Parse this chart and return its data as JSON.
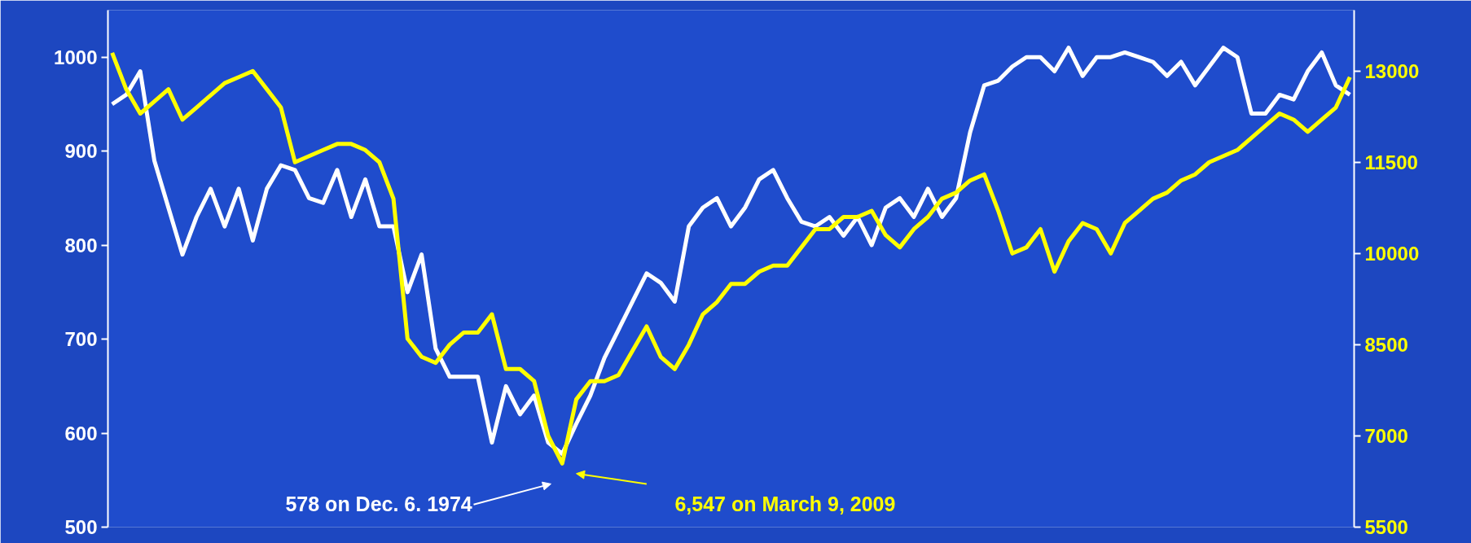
{
  "chart_data": {
    "type": "line",
    "categories": [
      null,
      null,
      null,
      null,
      null,
      null,
      null,
      null,
      null,
      null,
      null,
      null,
      null,
      null,
      null,
      null,
      null,
      null,
      null,
      null,
      null,
      null,
      null,
      null,
      null,
      null,
      null,
      null,
      null,
      null,
      null,
      null,
      null,
      null,
      null,
      null,
      null,
      null,
      null,
      null,
      null,
      null,
      null,
      null,
      null,
      null,
      null,
      null,
      null,
      null,
      null,
      null,
      null,
      null,
      null,
      null,
      null,
      null,
      null,
      null,
      null,
      null,
      null,
      null,
      null,
      null,
      null,
      null,
      null,
      null,
      null,
      null,
      null,
      null,
      null,
      null,
      null,
      null,
      null,
      null,
      null,
      null,
      null,
      null,
      null,
      null,
      null,
      null,
      null
    ],
    "series": [
      {
        "color": "#ffffff",
        "values": [
          950,
          960,
          985,
          890,
          840,
          790,
          830,
          860,
          820,
          860,
          805,
          860,
          885,
          880,
          850,
          845,
          880,
          830,
          870,
          820,
          820,
          750,
          790,
          690,
          660,
          660,
          660,
          590,
          650,
          620,
          640,
          590,
          578,
          610,
          640,
          680,
          710,
          740,
          770,
          760,
          740,
          820,
          840,
          850,
          820,
          840,
          870,
          880,
          850,
          825,
          820,
          830,
          810,
          830,
          800,
          840,
          850,
          830,
          860,
          830,
          850,
          920,
          970,
          975,
          990,
          1000,
          1000,
          985,
          1010,
          980,
          1000,
          1000,
          1005,
          1000,
          995,
          980,
          995,
          970,
          990,
          1010,
          1000,
          940,
          940,
          960,
          955,
          985,
          1005,
          970,
          960
        ]
      },
      {
        "color": "#ffff00",
        "axis": "y2",
        "values": [
          13300,
          12700,
          12300,
          12500,
          12700,
          12200,
          12400,
          12600,
          12800,
          12900,
          13000,
          12700,
          12400,
          11500,
          11600,
          11700,
          11800,
          11800,
          11700,
          11500,
          10900,
          8600,
          8300,
          8200,
          8500,
          8700,
          8700,
          9000,
          8100,
          8100,
          7900,
          7000,
          6547,
          7600,
          7900,
          7900,
          8000,
          8400,
          8800,
          8300,
          8100,
          8500,
          9000,
          9200,
          9500,
          9500,
          9700,
          9800,
          9800,
          10100,
          10400,
          10400,
          10600,
          10600,
          10700,
          10300,
          10100,
          10400,
          10600,
          10900,
          11000,
          11200,
          11300,
          10700,
          10000,
          10100,
          10400,
          9700,
          10200,
          10500,
          10400,
          10000,
          10500,
          10700,
          10900,
          11000,
          11200,
          11300,
          11500,
          11600,
          11700,
          11900,
          12100,
          12300,
          12200,
          12000,
          12200,
          12400,
          12900
        ]
      }
    ],
    "ylim": [
      500,
      1050
    ],
    "yticks": [
      500,
      600,
      700,
      800,
      900,
      1000
    ],
    "y2lim": [
      5500,
      14000
    ],
    "y2ticks": [
      5500,
      7000,
      8500,
      10000,
      11500,
      13000
    ],
    "annotations": [
      "578 on Dec. 6. 1974",
      "6,547 on March 9, 2009"
    ]
  }
}
